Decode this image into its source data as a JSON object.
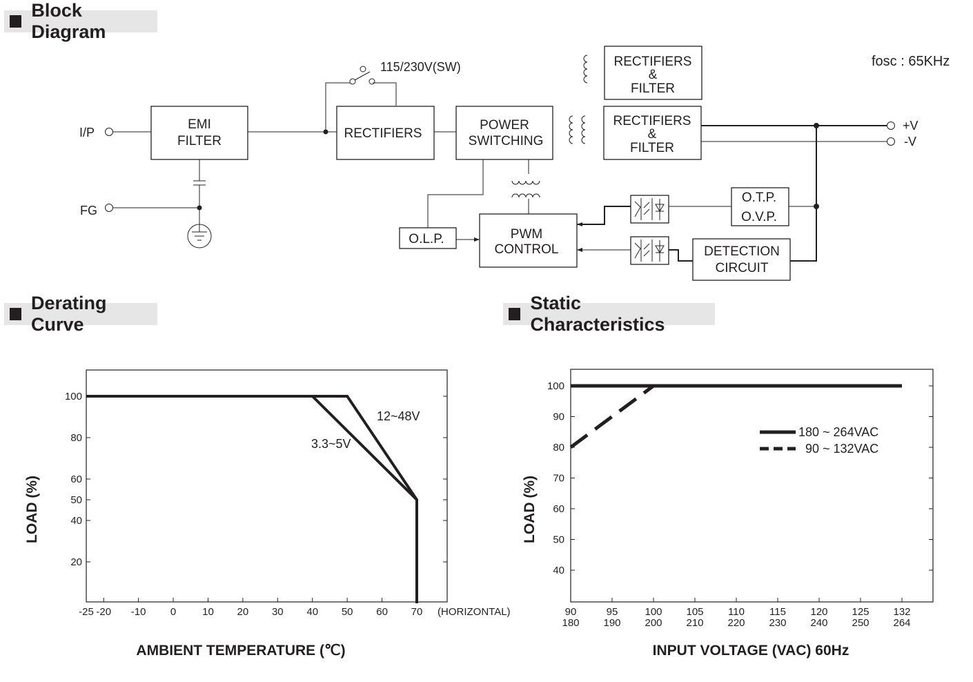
{
  "sections": {
    "block_diagram": "Block Diagram",
    "derating_curve": "Derating Curve",
    "static_characteristics": "Static Characteristics"
  },
  "block_diagram": {
    "fosc": "fosc : 65KHz",
    "input_label": "I/P",
    "fg_label": "FG",
    "switch_label": "115/230V(SW)",
    "emi_filter": [
      "EMI",
      "FILTER"
    ],
    "rectifiers": "RECTIFIERS",
    "power_switching": [
      "POWER",
      "SWITCHING"
    ],
    "rectifiers_filter_1": [
      "RECTIFIERS",
      "&",
      "FILTER"
    ],
    "rectifiers_filter_2": [
      "RECTIFIERS",
      "&",
      "FILTER"
    ],
    "pwm_control": [
      "PWM",
      "CONTROL"
    ],
    "olp": "O.L.P.",
    "otp": "O.T.P.",
    "ovp": "O.V.P.",
    "detection_circuit": [
      "DETECTION",
      "CIRCUIT"
    ],
    "out_pos": "+V",
    "out_neg": "-V"
  },
  "chart_data": [
    {
      "type": "line",
      "title": "",
      "xlabel": "AMBIENT TEMPERATURE (℃)",
      "ylabel": "LOAD (%)",
      "x_ticks": [
        -25,
        -20,
        -10,
        0,
        10,
        20,
        30,
        40,
        50,
        60,
        70
      ],
      "x_extra_label": "(HORIZONTAL)",
      "y_ticks": [
        20,
        40,
        50,
        60,
        80,
        100
      ],
      "xlim": [
        -25,
        70
      ],
      "ylim": [
        0,
        100
      ],
      "series": [
        {
          "name": "12~48V",
          "points": [
            [
              -25,
              100
            ],
            [
              50,
              100
            ],
            [
              70,
              50
            ],
            [
              70,
              0
            ]
          ]
        },
        {
          "name": "3.3~5V",
          "points": [
            [
              -25,
              100
            ],
            [
              40,
              100
            ],
            [
              70,
              50
            ],
            [
              70,
              0
            ]
          ]
        }
      ]
    },
    {
      "type": "line",
      "title": "",
      "xlabel": "INPUT VOLTAGE (VAC) 60Hz",
      "ylabel": "LOAD (%)",
      "x_ticks": [
        "90",
        "95",
        "100",
        "105",
        "110",
        "115",
        "120",
        "125",
        "132"
      ],
      "x_ticks_2": [
        "180",
        "190",
        "200",
        "210",
        "220",
        "230",
        "240",
        "250",
        "264"
      ],
      "y_ticks": [
        40,
        50,
        60,
        70,
        80,
        90,
        100
      ],
      "ylim": [
        40,
        100
      ],
      "legend": "right",
      "series": [
        {
          "name": "180 ~ 264VAC",
          "style": "solid",
          "points": [
            [
              "90",
              100
            ],
            [
              "132",
              100
            ]
          ]
        },
        {
          "name": "90 ~ 132VAC",
          "style": "dashed",
          "points": [
            [
              "90",
              80
            ],
            [
              "100",
              100
            ]
          ]
        }
      ]
    }
  ]
}
